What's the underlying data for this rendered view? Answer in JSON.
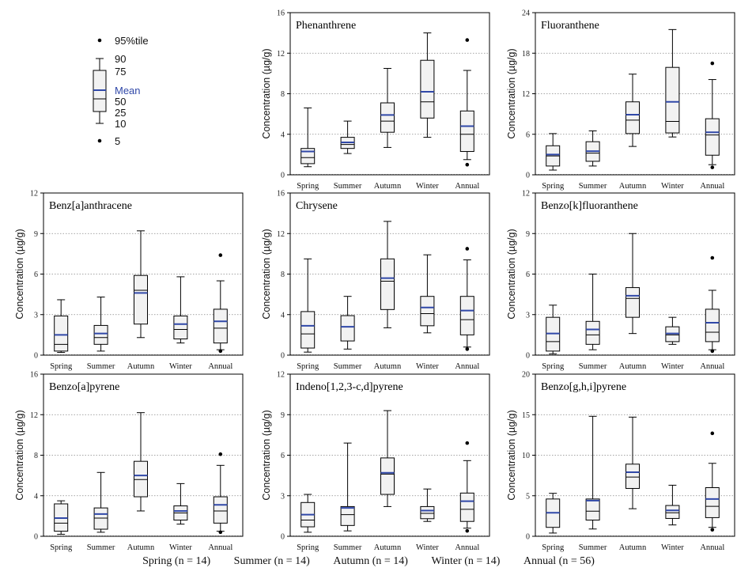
{
  "colors": {
    "mean": "#3048a8",
    "box_fill": "#f2f2f2",
    "stroke": "#000000",
    "grid": "#888888"
  },
  "legend": {
    "p95": "95%tile",
    "p90": "90",
    "p75": "75",
    "mean": "Mean",
    "p50": "50",
    "p25": "25",
    "p10": "10",
    "p5": "5"
  },
  "footer": {
    "items": [
      "Spring (n = 14)",
      "Summer (n = 14)",
      "Autumn (n = 14)",
      "Winter (n = 14)",
      "Annual (n = 56)"
    ]
  },
  "chart_data": [
    {
      "type": "boxplot",
      "title": "Phenanthrene",
      "ylabel": "Concentration (µg/g)",
      "ylim": [
        0,
        16
      ],
      "yticks": [
        0,
        4,
        8,
        12,
        16
      ],
      "grid": true,
      "categories": [
        "Spring",
        "Summer",
        "Autumn",
        "Winter",
        "Annual"
      ],
      "boxes": [
        {
          "p10": 0.8,
          "p25": 1.1,
          "median": 1.7,
          "mean": 2.3,
          "p75": 2.6,
          "p90": 6.6
        },
        {
          "p10": 2.1,
          "p25": 2.6,
          "median": 3.0,
          "mean": 3.2,
          "p75": 3.7,
          "p90": 5.3
        },
        {
          "p10": 2.7,
          "p25": 4.2,
          "median": 5.3,
          "mean": 5.9,
          "p75": 7.1,
          "p90": 10.5
        },
        {
          "p10": 3.7,
          "p25": 5.6,
          "median": 7.2,
          "mean": 8.2,
          "p75": 11.3,
          "p90": 14.0
        },
        {
          "p10": 1.5,
          "p25": 2.3,
          "median": 4.0,
          "mean": 4.8,
          "p75": 6.3,
          "p90": 10.3,
          "p5": 1.0,
          "p95": 13.3
        }
      ]
    },
    {
      "type": "boxplot",
      "title": "Fluoranthene",
      "ylabel": "Concentration (µg/g)",
      "ylim": [
        0,
        24
      ],
      "yticks": [
        0,
        6,
        12,
        18,
        24
      ],
      "grid": true,
      "categories": [
        "Spring",
        "Summer",
        "Autumn",
        "Winter",
        "Annual"
      ],
      "boxes": [
        {
          "p10": 0.7,
          "p25": 1.3,
          "median": 2.8,
          "mean": 3.0,
          "p75": 4.3,
          "p90": 6.1
        },
        {
          "p10": 1.3,
          "p25": 2.0,
          "median": 3.2,
          "mean": 3.5,
          "p75": 4.9,
          "p90": 6.5
        },
        {
          "p10": 4.2,
          "p25": 6.1,
          "median": 8.1,
          "mean": 8.9,
          "p75": 10.8,
          "p90": 14.9
        },
        {
          "p10": 5.6,
          "p25": 6.2,
          "median": 7.9,
          "mean": 10.8,
          "p75": 15.9,
          "p90": 21.5
        },
        {
          "p10": 1.5,
          "p25": 2.9,
          "median": 5.9,
          "mean": 6.3,
          "p75": 8.3,
          "p90": 14.1,
          "p5": 1.1,
          "p95": 16.5
        }
      ]
    },
    {
      "type": "boxplot",
      "title": "Benz[a]anthracene",
      "ylabel": "Concentration (µg/g)",
      "ylim": [
        0,
        12
      ],
      "yticks": [
        0,
        3,
        6,
        9,
        12
      ],
      "grid": true,
      "categories": [
        "Spring",
        "Summer",
        "Autumn",
        "Winter",
        "Annual"
      ],
      "boxes": [
        {
          "p10": 0.2,
          "p25": 0.3,
          "median": 0.8,
          "mean": 1.5,
          "p75": 2.9,
          "p90": 4.1
        },
        {
          "p10": 0.3,
          "p25": 0.8,
          "median": 1.3,
          "mean": 1.6,
          "p75": 2.2,
          "p90": 4.3
        },
        {
          "p10": 1.3,
          "p25": 2.3,
          "median": 4.8,
          "mean": 4.6,
          "p75": 5.9,
          "p90": 9.2
        },
        {
          "p10": 0.9,
          "p25": 1.2,
          "median": 1.9,
          "mean": 2.3,
          "p75": 2.9,
          "p90": 5.8
        },
        {
          "p10": 0.4,
          "p25": 0.9,
          "median": 2.0,
          "mean": 2.5,
          "p75": 3.4,
          "p90": 5.5,
          "p5": 0.3,
          "p95": 7.4
        }
      ]
    },
    {
      "type": "boxplot",
      "title": "Chrysene",
      "ylabel": "Concentration (µg/g)",
      "ylim": [
        0,
        16
      ],
      "yticks": [
        0,
        4,
        8,
        12,
        16
      ],
      "grid": true,
      "categories": [
        "Spring",
        "Summer",
        "Autumn",
        "Winter",
        "Annual"
      ],
      "boxes": [
        {
          "p10": 0.3,
          "p25": 0.7,
          "median": 2.1,
          "mean": 2.9,
          "p75": 4.3,
          "p90": 9.5
        },
        {
          "p10": 0.6,
          "p25": 1.4,
          "median": 2.8,
          "mean": 2.8,
          "p75": 3.9,
          "p90": 5.8
        },
        {
          "p10": 2.7,
          "p25": 4.5,
          "median": 7.3,
          "mean": 7.6,
          "p75": 9.5,
          "p90": 13.2
        },
        {
          "p10": 2.2,
          "p25": 2.9,
          "median": 4.1,
          "mean": 4.7,
          "p75": 5.8,
          "p90": 9.9
        },
        {
          "p10": 0.8,
          "p25": 2.0,
          "median": 3.5,
          "mean": 4.4,
          "p75": 5.8,
          "p90": 9.4,
          "p5": 0.6,
          "p95": 10.5
        }
      ]
    },
    {
      "type": "boxplot",
      "title": "Benzo[k]fluoranthene",
      "ylabel": "Concentration (µg/g)",
      "ylim": [
        0,
        12
      ],
      "yticks": [
        0,
        3,
        6,
        9,
        12
      ],
      "grid": true,
      "categories": [
        "Spring",
        "Summer",
        "Autumn",
        "Winter",
        "Annual"
      ],
      "boxes": [
        {
          "p10": 0.1,
          "p25": 0.3,
          "median": 1.0,
          "mean": 1.6,
          "p75": 2.8,
          "p90": 3.7
        },
        {
          "p10": 0.4,
          "p25": 0.8,
          "median": 1.5,
          "mean": 1.9,
          "p75": 2.5,
          "p90": 6.0
        },
        {
          "p10": 1.6,
          "p25": 2.8,
          "median": 4.2,
          "mean": 4.4,
          "p75": 5.0,
          "p90": 9.0
        },
        {
          "p10": 0.8,
          "p25": 1.0,
          "median": 1.5,
          "mean": 1.6,
          "p75": 2.1,
          "p90": 2.8
        },
        {
          "p10": 0.4,
          "p25": 1.0,
          "median": 1.7,
          "mean": 2.4,
          "p75": 3.4,
          "p90": 4.8,
          "p5": 0.3,
          "p95": 7.2
        }
      ]
    },
    {
      "type": "boxplot",
      "title": "Benzo[a]pyrene",
      "ylabel": "Concentration (µg/g)",
      "ylim": [
        0,
        16
      ],
      "yticks": [
        0,
        4,
        8,
        12,
        16
      ],
      "grid": true,
      "categories": [
        "Spring",
        "Summer",
        "Autumn",
        "Winter",
        "Annual"
      ],
      "boxes": [
        {
          "p10": 0.2,
          "p25": 0.5,
          "median": 1.3,
          "mean": 1.8,
          "p75": 3.2,
          "p90": 3.5
        },
        {
          "p10": 0.4,
          "p25": 0.7,
          "median": 1.8,
          "mean": 2.2,
          "p75": 2.8,
          "p90": 6.3
        },
        {
          "p10": 2.5,
          "p25": 3.9,
          "median": 5.6,
          "mean": 6.0,
          "p75": 7.4,
          "p90": 12.2
        },
        {
          "p10": 1.2,
          "p25": 1.6,
          "median": 2.3,
          "mean": 2.5,
          "p75": 3.0,
          "p90": 5.2
        },
        {
          "p10": 0.5,
          "p25": 1.3,
          "median": 2.5,
          "mean": 3.1,
          "p75": 3.9,
          "p90": 7.0,
          "p5": 0.4,
          "p95": 8.1
        }
      ]
    },
    {
      "type": "boxplot",
      "title": "Indeno[1,2,3-c,d]pyrene",
      "ylabel": "Concentration (µg/g)",
      "ylim": [
        0,
        12
      ],
      "yticks": [
        0,
        3,
        6,
        9,
        12
      ],
      "grid": true,
      "categories": [
        "Spring",
        "Summer",
        "Autumn",
        "Winter",
        "Annual"
      ],
      "boxes": [
        {
          "p10": 0.3,
          "p25": 0.7,
          "median": 1.2,
          "mean": 1.6,
          "p75": 2.5,
          "p90": 3.1
        },
        {
          "p10": 0.4,
          "p25": 0.8,
          "median": 1.6,
          "mean": 2.1,
          "p75": 2.2,
          "p90": 6.9
        },
        {
          "p10": 2.2,
          "p25": 3.1,
          "median": 4.6,
          "mean": 4.7,
          "p75": 5.8,
          "p90": 9.3
        },
        {
          "p10": 1.1,
          "p25": 1.3,
          "median": 1.7,
          "mean": 1.9,
          "p75": 2.2,
          "p90": 3.5
        },
        {
          "p10": 0.6,
          "p25": 1.1,
          "median": 2.0,
          "mean": 2.6,
          "p75": 3.2,
          "p90": 5.6,
          "p5": 0.4,
          "p95": 6.9
        }
      ]
    },
    {
      "type": "boxplot",
      "title": "Benzo[g,h,i]pyrene",
      "ylabel": "Concentration (µg/g)",
      "ylim": [
        0,
        20
      ],
      "yticks": [
        0,
        5,
        10,
        15,
        20
      ],
      "grid": true,
      "categories": [
        "Spring",
        "Summer",
        "Autumn",
        "Winter",
        "Annual"
      ],
      "boxes": [
        {
          "p10": 0.4,
          "p25": 1.1,
          "median": 2.9,
          "mean": 2.9,
          "p75": 4.6,
          "p90": 5.3
        },
        {
          "p10": 0.9,
          "p25": 2.0,
          "median": 3.1,
          "mean": 4.4,
          "p75": 4.6,
          "p90": 14.8
        },
        {
          "p10": 3.4,
          "p25": 5.9,
          "median": 7.3,
          "mean": 7.9,
          "p75": 8.9,
          "p90": 14.7
        },
        {
          "p10": 1.4,
          "p25": 2.2,
          "median": 2.9,
          "mean": 3.2,
          "p75": 3.8,
          "p90": 6.3
        },
        {
          "p10": 1.1,
          "p25": 2.3,
          "median": 3.7,
          "mean": 4.6,
          "p75": 6.0,
          "p90": 9.0,
          "p5": 0.8,
          "p95": 12.7
        }
      ]
    }
  ]
}
